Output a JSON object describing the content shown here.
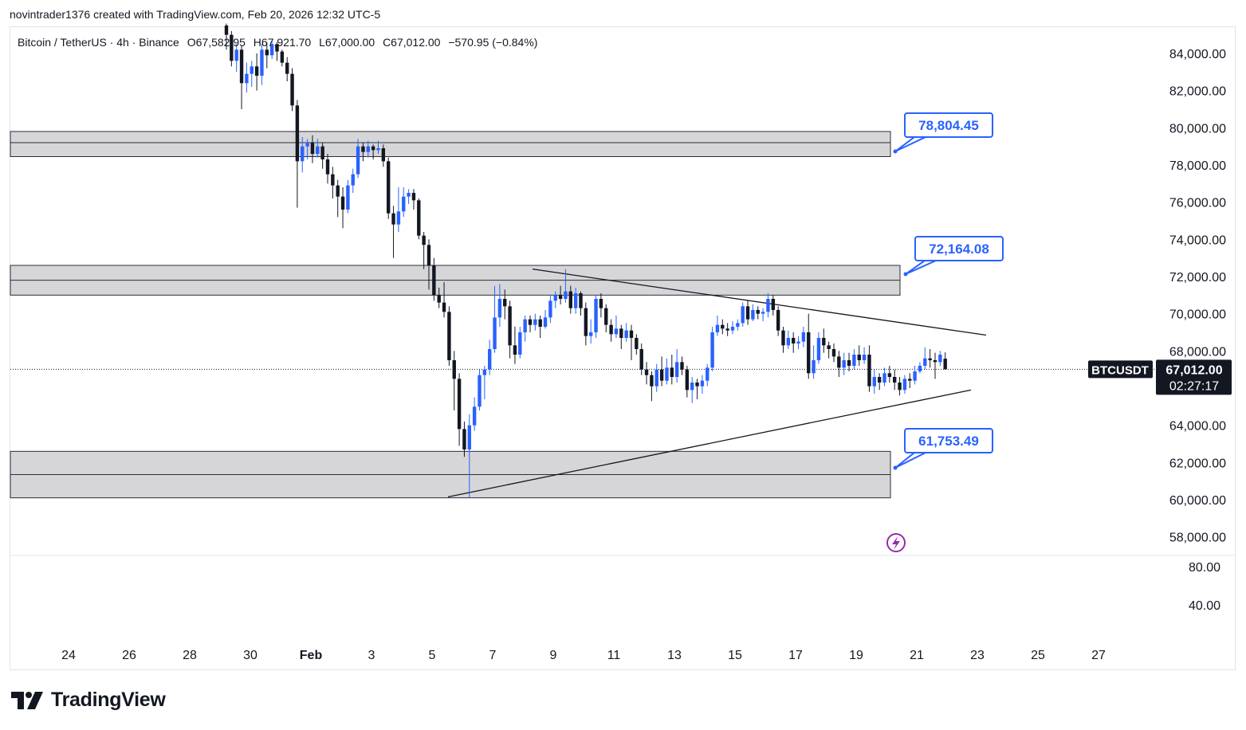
{
  "header": {
    "text": "novintrader1376 created with TradingView.com, Feb 20, 2026 12:32 UTC-5"
  },
  "legend": {
    "symbol": "Bitcoin / TetherUS · 4h · Binance",
    "open": "O67,582.95",
    "high": "H67,921.70",
    "low": "L67,000.00",
    "close": "C67,012.00",
    "change": "−570.95 (−0.84%)"
  },
  "chart_data": {
    "type": "candlestick",
    "symbol": "BTCUSDT",
    "timeframe": "4h",
    "exchange": "Binance",
    "x_ticks": [
      "24",
      "26",
      "28",
      "30",
      "Feb",
      "3",
      "5",
      "7",
      "9",
      "11",
      "13",
      "15",
      "17",
      "19",
      "21",
      "23",
      "25",
      "27"
    ],
    "y_ticks": [
      "84,000.00",
      "82,000.00",
      "80,000.00",
      "78,000.00",
      "76,000.00",
      "74,000.00",
      "72,000.00",
      "70,000.00",
      "68,000.00",
      "64,000.00",
      "62,000.00",
      "60,000.00",
      "58,000.00"
    ],
    "ylim": [
      57000,
      85500
    ],
    "indicator_ticks": [
      "80.00",
      "40.00"
    ],
    "last_price": {
      "label": "BTCUSDT",
      "price": "67,012.00",
      "countdown": "02:27:17",
      "value": 67012
    },
    "zones": [
      {
        "top": 79800,
        "mid": 79200,
        "bottom": 78450,
        "label": "78,804.45"
      },
      {
        "top": 72600,
        "mid": 71800,
        "bottom": 71000,
        "label": "72,164.08"
      },
      {
        "top": 62600,
        "mid": 61350,
        "bottom": 60100,
        "label": "61,753.49"
      }
    ],
    "trendlines": [
      {
        "name": "descending",
        "from": [
          "Feb 8",
          72400
        ],
        "to": [
          "Feb 23",
          68850
        ]
      },
      {
        "name": "ascending",
        "from": [
          "Feb 5",
          60150
        ],
        "to": [
          "Feb 22",
          65900
        ]
      }
    ],
    "candles": [
      [
        85500,
        85000,
        85600,
        84200
      ],
      [
        85000,
        83600,
        85200,
        83300
      ],
      [
        83600,
        84200,
        84500,
        83000
      ],
      [
        84200,
        82400,
        84400,
        81000
      ],
      [
        82400,
        82900,
        83500,
        81900
      ],
      [
        82900,
        83300,
        83600,
        82200
      ],
      [
        83300,
        82800,
        84000,
        82000
      ],
      [
        82800,
        84200,
        84500,
        82300
      ],
      [
        84200,
        83900,
        84600,
        83200
      ],
      [
        83900,
        84500,
        84700,
        83700
      ],
      [
        84500,
        84100,
        84600,
        83600
      ],
      [
        84100,
        83500,
        84200,
        83300
      ],
      [
        83500,
        82900,
        83800,
        82500
      ],
      [
        82900,
        81200,
        83200,
        80900
      ],
      [
        81200,
        78200,
        81500,
        75700
      ],
      [
        78200,
        79000,
        79500,
        77600
      ],
      [
        79000,
        79200,
        79400,
        78300
      ],
      [
        79200,
        78600,
        79600,
        78100
      ],
      [
        78600,
        79000,
        79400,
        78400
      ],
      [
        79000,
        78300,
        79200,
        77800
      ],
      [
        78300,
        77500,
        78600,
        77000
      ],
      [
        77500,
        76900,
        77900,
        76200
      ],
      [
        76900,
        76300,
        77200,
        75200
      ],
      [
        76300,
        75600,
        76800,
        74600
      ],
      [
        75600,
        76900,
        77200,
        75400
      ],
      [
        76900,
        77500,
        77800,
        76500
      ],
      [
        77500,
        79000,
        79400,
        77300
      ],
      [
        79000,
        78700,
        79200,
        78200
      ],
      [
        78700,
        79000,
        79300,
        78400
      ],
      [
        79000,
        78800,
        79100,
        78300
      ],
      [
        78800,
        78900,
        79300,
        78600
      ],
      [
        78900,
        78200,
        79100,
        77900
      ],
      [
        78200,
        75400,
        78400,
        75100
      ],
      [
        75400,
        74800,
        75800,
        73000
      ],
      [
        74800,
        75500,
        76800,
        74400
      ],
      [
        75500,
        76300,
        76800,
        75200
      ],
      [
        76300,
        76500,
        76700,
        75900
      ],
      [
        76500,
        76100,
        76700,
        75600
      ],
      [
        76100,
        74200,
        76200,
        74000
      ],
      [
        74200,
        73700,
        74400,
        72400
      ],
      [
        73700,
        72600,
        74000,
        71300
      ],
      [
        72600,
        71000,
        73000,
        70700
      ],
      [
        71000,
        70600,
        71400,
        70300
      ],
      [
        70600,
        70100,
        71700,
        69800
      ],
      [
        70100,
        67500,
        70400,
        67200
      ],
      [
        67500,
        66500,
        68000,
        64800
      ],
      [
        66500,
        63800,
        66800,
        62900
      ],
      [
        63800,
        62700,
        64200,
        62300
      ],
      [
        62700,
        64000,
        64600,
        60100
      ],
      [
        64000,
        65000,
        65500,
        63700
      ],
      [
        65000,
        66700,
        67000,
        64800
      ],
      [
        66700,
        67000,
        67200,
        65400
      ],
      [
        67000,
        68100,
        68600,
        66700
      ],
      [
        68100,
        69800,
        71500,
        67900
      ],
      [
        69800,
        70800,
        71600,
        69300
      ],
      [
        70800,
        70400,
        71300,
        69700
      ],
      [
        70400,
        68300,
        70700,
        67600
      ],
      [
        68300,
        67800,
        69300,
        67300
      ],
      [
        67800,
        69000,
        69300,
        67600
      ],
      [
        69000,
        69700,
        69900,
        68500
      ],
      [
        69700,
        69400,
        69900,
        69000
      ],
      [
        69400,
        69700,
        70000,
        69100
      ],
      [
        69700,
        69300,
        69900,
        68700
      ],
      [
        69300,
        69800,
        70200,
        69200
      ],
      [
        69800,
        70700,
        71000,
        69500
      ],
      [
        70700,
        71000,
        71200,
        70300
      ],
      [
        71000,
        70800,
        71500,
        70500
      ],
      [
        70800,
        71200,
        72400,
        70600
      ],
      [
        71200,
        70300,
        71500,
        70000
      ],
      [
        70300,
        71100,
        71400,
        70000
      ],
      [
        71100,
        70300,
        71200,
        69900
      ],
      [
        70300,
        68800,
        70600,
        68300
      ],
      [
        68800,
        69000,
        69700,
        68400
      ],
      [
        69000,
        70800,
        71000,
        68700
      ],
      [
        70800,
        70300,
        71100,
        69800
      ],
      [
        70300,
        69400,
        70500,
        69000
      ],
      [
        69400,
        68900,
        69700,
        68500
      ],
      [
        68900,
        69200,
        69900,
        68700
      ],
      [
        69200,
        68700,
        69400,
        68100
      ],
      [
        68700,
        69100,
        69500,
        68500
      ],
      [
        69100,
        68700,
        69400,
        67500
      ],
      [
        68700,
        68100,
        68900,
        67800
      ],
      [
        68100,
        67000,
        68400,
        66700
      ],
      [
        67000,
        66700,
        67400,
        66200
      ],
      [
        66700,
        66100,
        66900,
        65300
      ],
      [
        66100,
        67000,
        67300,
        65800
      ],
      [
        67000,
        66400,
        67700,
        66100
      ],
      [
        66400,
        67100,
        67600,
        66200
      ],
      [
        67100,
        66600,
        67800,
        66200
      ],
      [
        66600,
        67400,
        68100,
        66300
      ],
      [
        67400,
        67000,
        67700,
        66700
      ],
      [
        67000,
        65900,
        67200,
        65500
      ],
      [
        65900,
        66300,
        66600,
        65200
      ],
      [
        66300,
        66100,
        66500,
        65400
      ],
      [
        66100,
        66400,
        66700,
        65700
      ],
      [
        66400,
        67100,
        67300,
        66100
      ],
      [
        67100,
        69000,
        69300,
        66900
      ],
      [
        69000,
        69400,
        69900,
        68800
      ],
      [
        69400,
        69200,
        69700,
        68900
      ],
      [
        69200,
        69100,
        69500,
        68800
      ],
      [
        69100,
        69300,
        69600,
        68900
      ],
      [
        69300,
        69500,
        69700,
        69100
      ],
      [
        69500,
        70400,
        70600,
        69300
      ],
      [
        70400,
        69700,
        70700,
        69400
      ],
      [
        69700,
        70200,
        70500,
        69600
      ],
      [
        70200,
        70000,
        70400,
        69700
      ],
      [
        70000,
        70100,
        70300,
        69600
      ],
      [
        70100,
        70800,
        71100,
        69800
      ],
      [
        70800,
        70200,
        71000,
        69900
      ],
      [
        70200,
        69100,
        70400,
        68800
      ],
      [
        69100,
        68300,
        69300,
        67900
      ],
      [
        68300,
        68700,
        69100,
        68100
      ],
      [
        68700,
        68400,
        69000,
        67900
      ],
      [
        68400,
        68500,
        68800,
        68100
      ],
      [
        68500,
        69000,
        69300,
        68200
      ],
      [
        69000,
        66800,
        70000,
        66500
      ],
      [
        66800,
        67500,
        68300,
        66500
      ],
      [
        67500,
        68700,
        69000,
        67300
      ],
      [
        68700,
        68300,
        69200,
        67900
      ],
      [
        68300,
        68100,
        68500,
        67600
      ],
      [
        68100,
        67700,
        68400,
        67400
      ],
      [
        67700,
        67100,
        68000,
        66600
      ],
      [
        67100,
        67500,
        67900,
        66700
      ],
      [
        67500,
        67200,
        67900,
        66900
      ],
      [
        67200,
        67800,
        68100,
        67000
      ],
      [
        67800,
        67500,
        68300,
        67200
      ],
      [
        67500,
        67800,
        68200,
        67300
      ],
      [
        67800,
        66100,
        68300,
        65800
      ],
      [
        66100,
        66600,
        67000,
        65700
      ],
      [
        66600,
        66300,
        66800,
        65900
      ],
      [
        66300,
        66800,
        67100,
        66100
      ],
      [
        66800,
        66600,
        67200,
        66300
      ],
      [
        66600,
        66300,
        67000,
        65900
      ],
      [
        66300,
        65900,
        66600,
        65600
      ],
      [
        65900,
        66500,
        66700,
        65700
      ],
      [
        66500,
        66400,
        66800,
        66000
      ],
      [
        66400,
        66900,
        67200,
        66200
      ],
      [
        66900,
        67200,
        67400,
        66800
      ],
      [
        67200,
        67600,
        68200,
        67000
      ],
      [
        67600,
        67500,
        68100,
        67100
      ],
      [
        67500,
        67400,
        67900,
        66500
      ],
      [
        67400,
        67800,
        68000,
        67200
      ],
      [
        67583,
        67012,
        67922,
        67000
      ]
    ]
  },
  "brand": {
    "name": "TradingView"
  },
  "colors": {
    "up": "#2962ff",
    "down": "#131722",
    "zone_fill": "#d6d6d8",
    "zone_border": "#2a2e39",
    "callout": "#2962ff"
  },
  "icons": {
    "flash": "lightning-icon",
    "logo": "tradingview-logo-icon"
  }
}
